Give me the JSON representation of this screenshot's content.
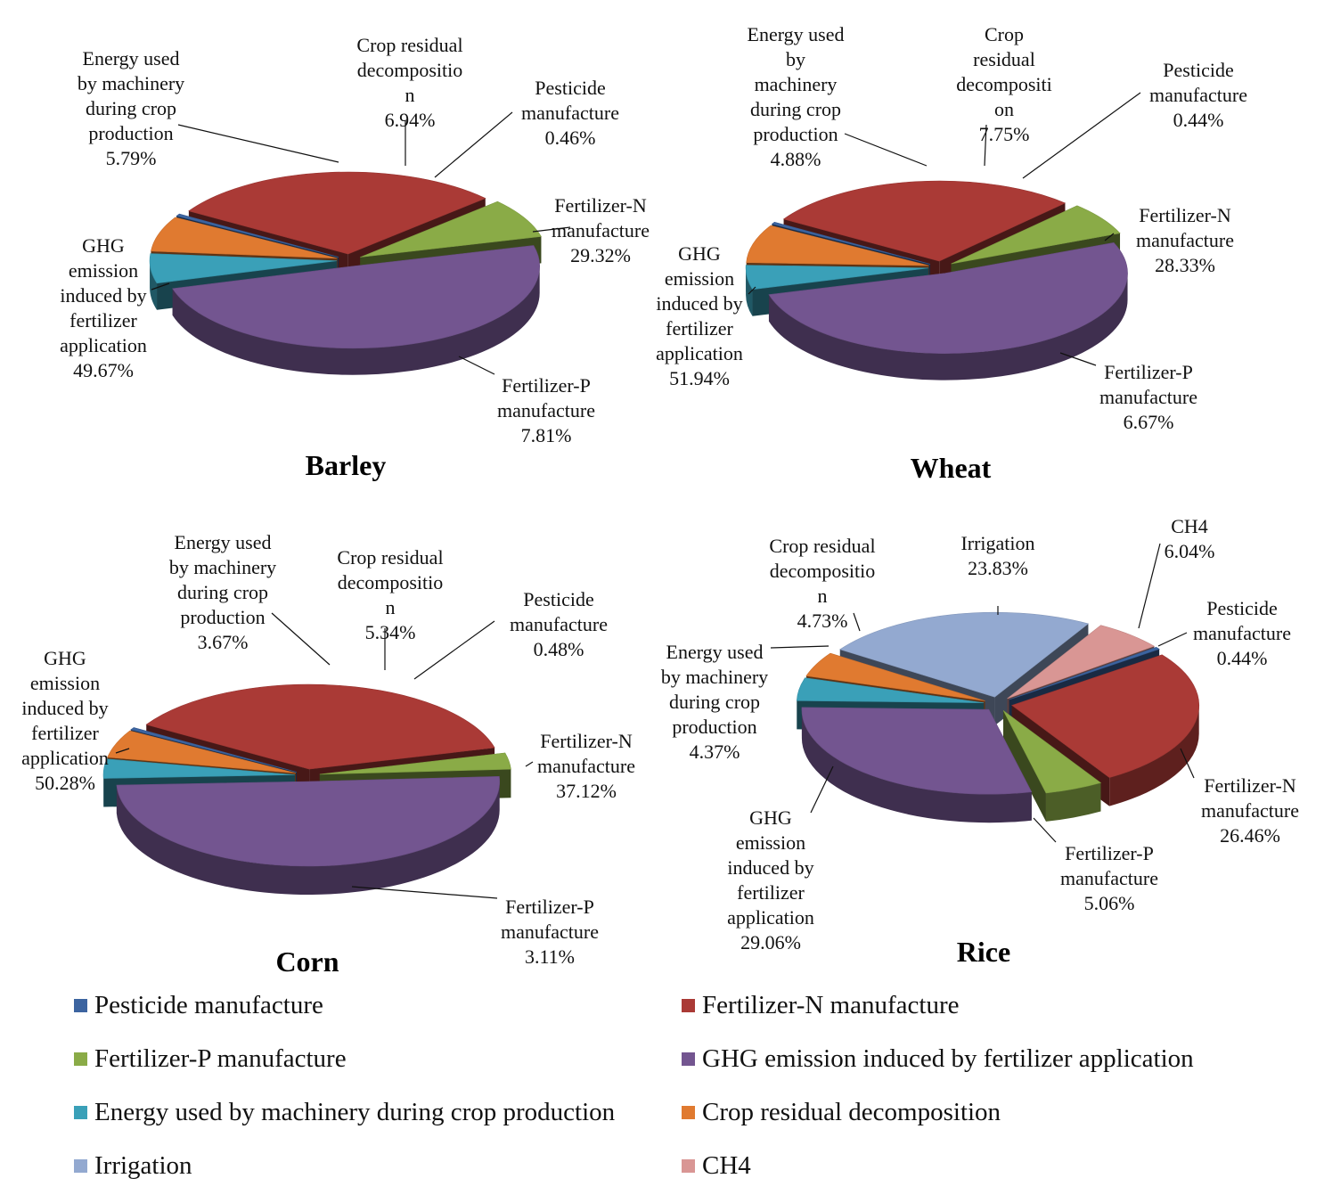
{
  "colors": {
    "pesticide": "#3c64a0",
    "fertN": "#aa3a36",
    "fertP": "#8aab47",
    "ghg": "#735590",
    "energy": "#3aa0b8",
    "residue": "#e07a30",
    "irrigation": "#93a9d0",
    "ch4": "#d99694"
  },
  "legend": [
    {
      "key": "pesticide",
      "label": "Pesticide manufacture"
    },
    {
      "key": "fertN",
      "label": "Fertilizer-N manufacture"
    },
    {
      "key": "fertP",
      "label": "Fertilizer-P manufacture"
    },
    {
      "key": "ghg",
      "label": "GHG emission induced by fertilizer application"
    },
    {
      "key": "energy",
      "label": "Energy used by machinery during crop production"
    },
    {
      "key": "residue",
      "label": "Crop residual decomposition"
    },
    {
      "key": "irrigation",
      "label": "Irrigation"
    },
    {
      "key": "ch4",
      "label": "CH4"
    }
  ],
  "chart_data": [
    {
      "type": "pie",
      "title": "Barley",
      "slices": [
        {
          "key": "pesticide",
          "value": 0.46,
          "label_lines": [
            "Pesticide",
            "manufacture",
            "0.46%"
          ]
        },
        {
          "key": "fertN",
          "value": 29.32,
          "label_lines": [
            "Fertilizer-N",
            "manufacture",
            "29.32%"
          ]
        },
        {
          "key": "fertP",
          "value": 7.81,
          "label_lines": [
            "Fertilizer-P",
            "manufacture",
            "7.81%"
          ]
        },
        {
          "key": "ghg",
          "value": 49.67,
          "label_lines": [
            "GHG",
            "emission",
            "induced by",
            "fertilizer",
            "application",
            "49.67%"
          ]
        },
        {
          "key": "energy",
          "value": 5.79,
          "label_lines": [
            "Energy used",
            "by machinery",
            "during crop",
            "production",
            "5.79%"
          ]
        },
        {
          "key": "residue",
          "value": 6.94,
          "label_lines": [
            "Crop residual",
            "decompositio",
            "n",
            "6.94%"
          ]
        }
      ]
    },
    {
      "type": "pie",
      "title": "Wheat",
      "slices": [
        {
          "key": "pesticide",
          "value": 0.44,
          "label_lines": [
            "Pesticide",
            "manufacture",
            "0.44%"
          ]
        },
        {
          "key": "fertN",
          "value": 28.33,
          "label_lines": [
            "Fertilizer-N",
            "manufacture",
            "28.33%"
          ]
        },
        {
          "key": "fertP",
          "value": 6.67,
          "label_lines": [
            "Fertilizer-P",
            "manufacture",
            "6.67%"
          ]
        },
        {
          "key": "ghg",
          "value": 51.94,
          "label_lines": [
            "GHG",
            "emission",
            "induced by",
            "fertilizer",
            "application",
            "51.94%"
          ]
        },
        {
          "key": "energy",
          "value": 4.88,
          "label_lines": [
            "Energy used",
            "by",
            "machinery",
            "during crop",
            "production",
            "4.88%"
          ]
        },
        {
          "key": "residue",
          "value": 7.75,
          "label_lines": [
            "Crop",
            "residual",
            "decompositi",
            "on",
            "7.75%"
          ]
        }
      ]
    },
    {
      "type": "pie",
      "title": "Corn",
      "slices": [
        {
          "key": "pesticide",
          "value": 0.48,
          "label_lines": [
            "Pesticide",
            "manufacture",
            "0.48%"
          ]
        },
        {
          "key": "fertN",
          "value": 37.12,
          "label_lines": [
            "Fertilizer-N",
            "manufacture",
            "37.12%"
          ]
        },
        {
          "key": "fertP",
          "value": 3.11,
          "label_lines": [
            "Fertilizer-P",
            "manufacture",
            "3.11%"
          ]
        },
        {
          "key": "ghg",
          "value": 50.28,
          "label_lines": [
            "GHG",
            "emission",
            "induced by",
            "fertilizer",
            "application",
            "50.28%"
          ]
        },
        {
          "key": "energy",
          "value": 3.67,
          "label_lines": [
            "Energy used",
            "by machinery",
            "during crop",
            "production",
            "3.67%"
          ]
        },
        {
          "key": "residue",
          "value": 5.34,
          "label_lines": [
            "Crop residual",
            "decompositio",
            "n",
            "5.34%"
          ]
        }
      ]
    },
    {
      "type": "pie",
      "title": "Rice",
      "slices": [
        {
          "key": "ch4",
          "value": 6.04,
          "label_lines": [
            "CH4",
            "6.04%"
          ]
        },
        {
          "key": "pesticide",
          "value": 0.44,
          "label_lines": [
            "Pesticide",
            "manufacture",
            "0.44%"
          ]
        },
        {
          "key": "fertN",
          "value": 26.46,
          "label_lines": [
            "Fertilizer-N",
            "manufacture",
            "26.46%"
          ]
        },
        {
          "key": "fertP",
          "value": 5.06,
          "label_lines": [
            "Fertilizer-P",
            "manufacture",
            "5.06%"
          ]
        },
        {
          "key": "ghg",
          "value": 29.06,
          "label_lines": [
            "GHG",
            "emission",
            "induced by",
            "fertilizer",
            "application",
            "29.06%"
          ]
        },
        {
          "key": "energy",
          "value": 4.37,
          "label_lines": [
            "Energy used",
            "by machinery",
            "during crop",
            "production",
            "4.37%"
          ]
        },
        {
          "key": "residue",
          "value": 4.73,
          "label_lines": [
            "Crop residual",
            "decompositio",
            "n",
            "4.73%"
          ]
        },
        {
          "key": "irrigation",
          "value": 23.83,
          "label_lines": [
            "Irrigation",
            "23.83%"
          ]
        }
      ]
    }
  ]
}
